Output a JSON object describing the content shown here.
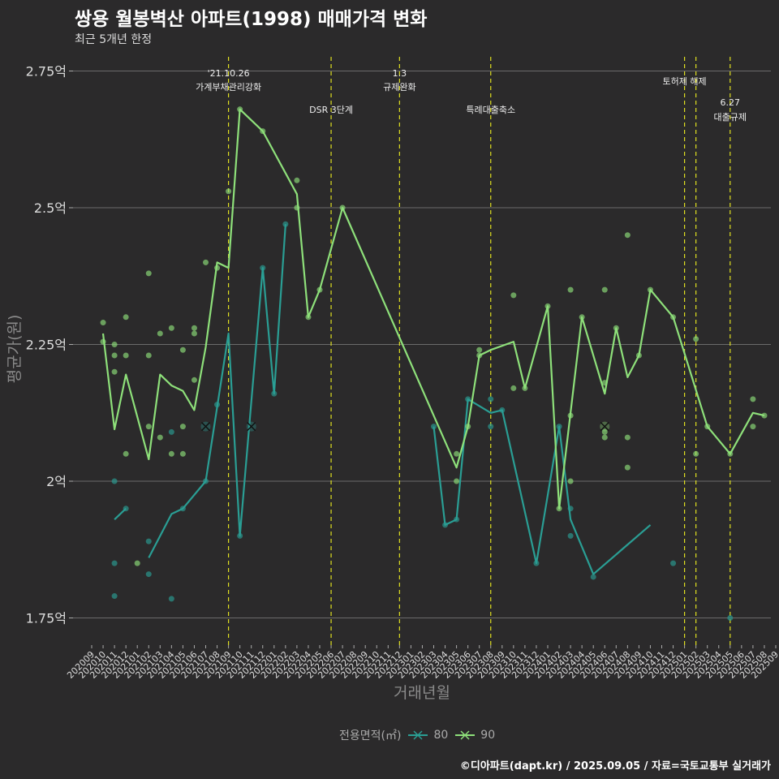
{
  "title": "쌍용 월봉벽산 아파트(1998) 매매가격 변화",
  "subtitle": "최근 5개년 한정",
  "caption": "©디아파트(dapt.kr) / 2025.09.05 / 자료=국토교통부 실거래가",
  "legend": {
    "title": "전용면적(㎡)",
    "items": [
      {
        "label": "80",
        "color": "#2a9e94"
      },
      {
        "label": "90",
        "color": "#8ee07a"
      }
    ]
  },
  "chart_data": {
    "type": "line",
    "title": "쌍용 월봉벽산 아파트(1998) 매매가격 변화",
    "subtitle": "최근 5개년 한정",
    "xlabel": "거래년월",
    "ylabel": "평균가(원)",
    "ylim": [
      1.7,
      2.8
    ],
    "yticks": [
      1.75,
      2.0,
      2.25,
      2.5,
      2.75
    ],
    "ytick_labels": [
      "1.75억",
      "2억",
      "2.25억",
      "2.5억",
      "2.75억"
    ],
    "grid": "horizontal",
    "legend_position": "bottom",
    "x_categories": [
      "202009",
      "202010",
      "202011",
      "202012",
      "202101",
      "202102",
      "202103",
      "202104",
      "202105",
      "202106",
      "202107",
      "202108",
      "202109",
      "202110",
      "202111",
      "202112",
      "202201",
      "202202",
      "202203",
      "202204",
      "202205",
      "202206",
      "202207",
      "202208",
      "202209",
      "202210",
      "202211",
      "202212",
      "202301",
      "202302",
      "202303",
      "202304",
      "202305",
      "202306",
      "202307",
      "202308",
      "202309",
      "202310",
      "202311",
      "202312",
      "202401",
      "202402",
      "202403",
      "202404",
      "202405",
      "202406",
      "202407",
      "202408",
      "202409",
      "202410",
      "202411",
      "202412",
      "202501",
      "202502",
      "202503",
      "202504",
      "202505",
      "202506",
      "202507",
      "202508",
      "202509"
    ],
    "series": [
      {
        "name": "80",
        "color": "#2a9e94",
        "line": [
          [
            2,
            1.93
          ],
          [
            3,
            1.95
          ],
          [
            null,
            null
          ],
          [
            5,
            1.86
          ],
          [
            7,
            1.94
          ],
          [
            8,
            1.95
          ],
          [
            10,
            2.0
          ],
          [
            12,
            2.27
          ],
          [
            13,
            1.9
          ],
          [
            15,
            2.39
          ],
          [
            16,
            2.16
          ],
          [
            17,
            2.47
          ],
          [
            null,
            null
          ],
          [
            30,
            2.1
          ],
          [
            31,
            1.92
          ],
          [
            32,
            1.93
          ],
          [
            33,
            2.15
          ],
          [
            35,
            2.125
          ],
          [
            36,
            2.13
          ],
          [
            39,
            1.85
          ],
          [
            41,
            2.1
          ],
          [
            42,
            1.93
          ],
          [
            44,
            1.83
          ],
          [
            49,
            1.92
          ]
        ],
        "points": [
          [
            2,
            2.0
          ],
          [
            2,
            1.85
          ],
          [
            2,
            1.79
          ],
          [
            3,
            1.95
          ],
          [
            5,
            1.89
          ],
          [
            5,
            1.83
          ],
          [
            7,
            1.785
          ],
          [
            7,
            2.09
          ],
          [
            8,
            1.95
          ],
          [
            10,
            2.0
          ],
          [
            11,
            2.14
          ],
          [
            13,
            1.9
          ],
          [
            15,
            2.39
          ],
          [
            16,
            2.16
          ],
          [
            17,
            2.47
          ],
          [
            30,
            2.1
          ],
          [
            31,
            1.92
          ],
          [
            32,
            1.93
          ],
          [
            33,
            2.15
          ],
          [
            35,
            2.15
          ],
          [
            35,
            2.1
          ],
          [
            36,
            2.13
          ],
          [
            39,
            1.85
          ],
          [
            41,
            2.1
          ],
          [
            42,
            1.95
          ],
          [
            42,
            1.9
          ],
          [
            44,
            1.825
          ],
          [
            51,
            1.85
          ],
          [
            56,
            1.75
          ]
        ],
        "markers": [
          [
            10,
            2.1
          ],
          [
            14,
            2.1
          ]
        ]
      },
      {
        "name": "90",
        "color": "#8ee07a",
        "line": [
          [
            1,
            2.27
          ],
          [
            2,
            2.095
          ],
          [
            3,
            2.195
          ],
          [
            5,
            2.04
          ],
          [
            6,
            2.195
          ],
          [
            7,
            2.175
          ],
          [
            8,
            2.165
          ],
          [
            9,
            2.13
          ],
          [
            10,
            2.245
          ],
          [
            11,
            2.4
          ],
          [
            12,
            2.39
          ],
          [
            13,
            2.68
          ],
          [
            15,
            2.64
          ],
          [
            18,
            2.525
          ],
          [
            19,
            2.3
          ],
          [
            20,
            2.35
          ],
          [
            22,
            2.5
          ],
          [
            32,
            2.025
          ],
          [
            33,
            2.1
          ],
          [
            34,
            2.23
          ],
          [
            35,
            2.24
          ],
          [
            37,
            2.255
          ],
          [
            38,
            2.17
          ],
          [
            40,
            2.32
          ],
          [
            41,
            1.95
          ],
          [
            43,
            2.3
          ],
          [
            45,
            2.16
          ],
          [
            46,
            2.28
          ],
          [
            47,
            2.19
          ],
          [
            48,
            2.23
          ],
          [
            49,
            2.35
          ],
          [
            51,
            2.3
          ],
          [
            54,
            2.1
          ],
          [
            56,
            2.05
          ],
          [
            58,
            2.125
          ],
          [
            59,
            2.12
          ]
        ],
        "points": [
          [
            1,
            2.29
          ],
          [
            1,
            2.255
          ],
          [
            2,
            2.25
          ],
          [
            2,
            2.23
          ],
          [
            2,
            2.2
          ],
          [
            3,
            2.3
          ],
          [
            3,
            2.23
          ],
          [
            3,
            2.05
          ],
          [
            4,
            1.85
          ],
          [
            5,
            2.23
          ],
          [
            5,
            2.38
          ],
          [
            5,
            2.1
          ],
          [
            6,
            2.08
          ],
          [
            6,
            2.27
          ],
          [
            7,
            2.28
          ],
          [
            7,
            2.05
          ],
          [
            8,
            2.24
          ],
          [
            8,
            2.1
          ],
          [
            8,
            2.05
          ],
          [
            9,
            2.28
          ],
          [
            9,
            2.27
          ],
          [
            9,
            2.185
          ],
          [
            10,
            2.4
          ],
          [
            11,
            2.39
          ],
          [
            12,
            2.53
          ],
          [
            13,
            2.68
          ],
          [
            15,
            2.64
          ],
          [
            18,
            2.55
          ],
          [
            18,
            2.5
          ],
          [
            19,
            2.3
          ],
          [
            20,
            2.35
          ],
          [
            22,
            2.5
          ],
          [
            32,
            2.05
          ],
          [
            32,
            2.0
          ],
          [
            33,
            2.1
          ],
          [
            34,
            2.24
          ],
          [
            34,
            2.23
          ],
          [
            37,
            2.34
          ],
          [
            37,
            2.17
          ],
          [
            38,
            2.17
          ],
          [
            40,
            2.32
          ],
          [
            41,
            1.95
          ],
          [
            42,
            2.12
          ],
          [
            42,
            2.0
          ],
          [
            42,
            2.35
          ],
          [
            43,
            2.3
          ],
          [
            45,
            2.35
          ],
          [
            45,
            2.18
          ],
          [
            45,
            2.08
          ],
          [
            45,
            2.09
          ],
          [
            46,
            2.28
          ],
          [
            47,
            2.45
          ],
          [
            47,
            2.08
          ],
          [
            47,
            2.025
          ],
          [
            48,
            2.23
          ],
          [
            49,
            2.35
          ],
          [
            51,
            2.3
          ],
          [
            53,
            2.26
          ],
          [
            53,
            2.05
          ],
          [
            54,
            2.1
          ],
          [
            56,
            2.05
          ],
          [
            58,
            2.15
          ],
          [
            58,
            2.1
          ],
          [
            59,
            2.12
          ]
        ],
        "markers": [
          [
            45,
            2.1
          ]
        ]
      }
    ],
    "vlines": [
      {
        "x": 12.0,
        "label": "'21.10.26\n가계부채관리강화",
        "labelRow": 1
      },
      {
        "x": 21.0,
        "label": "DSR 3단계",
        "labelRow": 2
      },
      {
        "x": 27.0,
        "label": "1.3\n규제완화",
        "labelRow": 1
      },
      {
        "x": 35.0,
        "label": "특례대출축소",
        "labelRow": 2
      },
      {
        "x": 52.0,
        "label": "토허제 해제",
        "labelRow": 1
      },
      {
        "x": 53.0,
        "label": "",
        "labelRow": 0
      },
      {
        "x": 56.0,
        "label": "6.27\n대출규제",
        "labelRow": 3
      }
    ]
  }
}
